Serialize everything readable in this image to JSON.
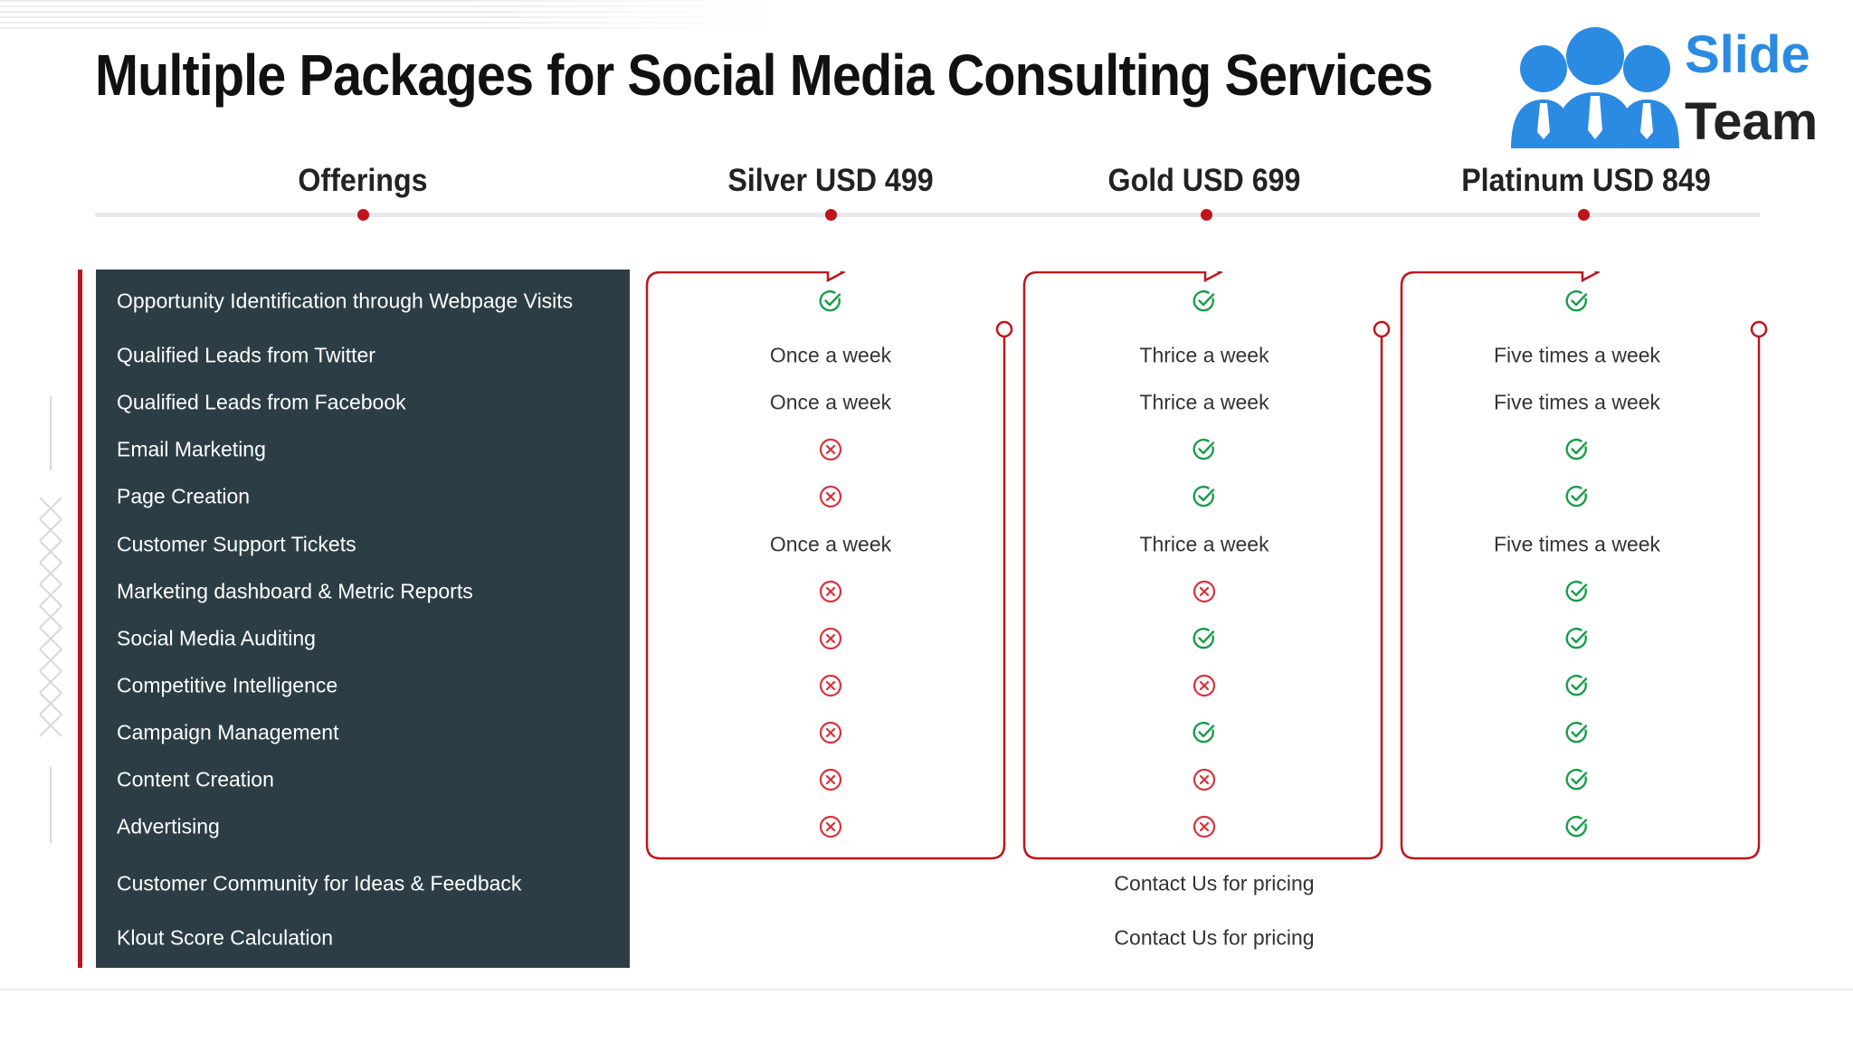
{
  "title": "Multiple Packages for Social Media Consulting Services",
  "logo": {
    "line1": "Slide",
    "line2": "Team",
    "icon": "people-group-icon",
    "color": "#2b8ae2"
  },
  "columns": {
    "offerings": "Offerings",
    "silver": "Silver USD 499",
    "gold": "Gold USD 699",
    "platinum": "Platinum USD 849"
  },
  "colors": {
    "accent": "#c0141c",
    "panel": "#2c3d45",
    "check": "#1a9c4c",
    "cross": "#d8323b"
  },
  "rows": [
    {
      "label": "Opportunity Identification through Webpage Visits",
      "silver": "check",
      "gold": "check",
      "platinum": "check"
    },
    {
      "label": "Qualified Leads from Twitter",
      "silver": "Once a week",
      "gold": "Thrice a week",
      "platinum": "Five times a week"
    },
    {
      "label": "Qualified Leads from Facebook",
      "silver": "Once a week",
      "gold": "Thrice a week",
      "platinum": "Five times a week"
    },
    {
      "label": "Email Marketing",
      "silver": "cross",
      "gold": "check",
      "platinum": "check"
    },
    {
      "label": "Page Creation",
      "silver": "cross",
      "gold": "check",
      "platinum": "check"
    },
    {
      "label": "Customer Support Tickets",
      "silver": "Once a week",
      "gold": "Thrice a week",
      "platinum": "Five times a week"
    },
    {
      "label": "Marketing dashboard & Metric Reports",
      "silver": "cross",
      "gold": "cross",
      "platinum": "check"
    },
    {
      "label": "Social Media Auditing",
      "silver": "cross",
      "gold": "check",
      "platinum": "check"
    },
    {
      "label": "Competitive Intelligence",
      "silver": "cross",
      "gold": "cross",
      "platinum": "check"
    },
    {
      "label": "Campaign Management",
      "silver": "cross",
      "gold": "check",
      "platinum": "check"
    },
    {
      "label": "Content Creation",
      "silver": "cross",
      "gold": "cross",
      "platinum": "check"
    },
    {
      "label": "Advertising",
      "silver": "cross",
      "gold": "cross",
      "platinum": "check"
    }
  ],
  "extra_rows": [
    {
      "label": "Customer Community for Ideas & Feedback",
      "value": "Contact Us for pricing"
    },
    {
      "label": "Klout Score Calculation",
      "value": "Contact Us for pricing"
    }
  ]
}
